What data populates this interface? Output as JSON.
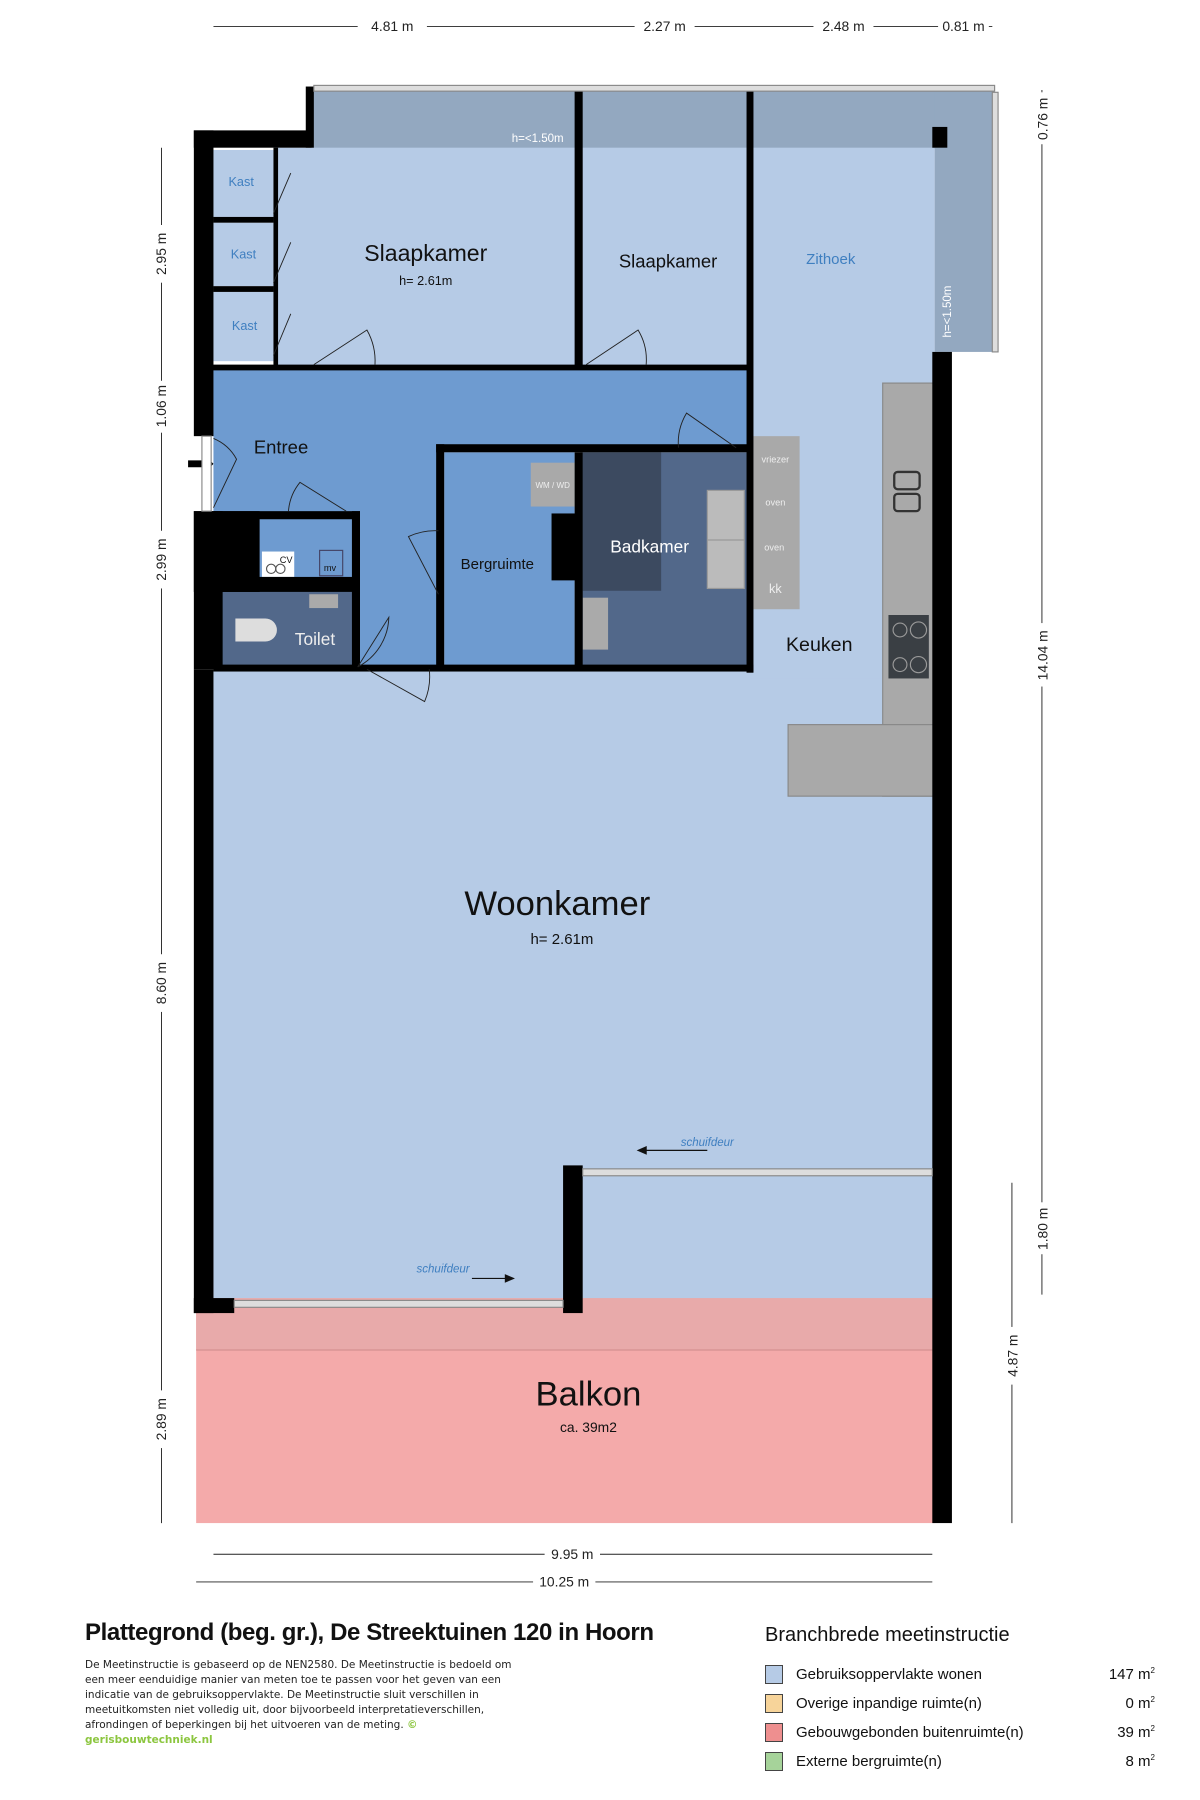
{
  "plan": {
    "rooms": {
      "slaapkamer1": "Slaapkamer",
      "slaapkamer1_height": "h= 2.61m",
      "slaapkamer2": "Slaapkamer",
      "zithoek": "Zithoek",
      "entree": "Entree",
      "bergruimte": "Bergruimte",
      "badkamer": "Badkamer",
      "toilet": "Toilet",
      "keuken": "Keuken",
      "woonkamer": "Woonkamer",
      "woonkamer_height": "h= 2.61m",
      "balkon": "Balkon",
      "balkon_area": "ca. 39m2",
      "kast": [
        "Kast",
        "Kast",
        "Kast"
      ]
    },
    "labels": {
      "top_strip_height": "h=<1.50m",
      "right_strip_height": "h=<1.50m",
      "wm_wd": "WM / WD",
      "cv": "CV",
      "mv": "mv",
      "vriezer": "vriezer",
      "oven1": "oven",
      "oven2": "oven",
      "kk": "kk",
      "schuifdeur1": "schuifdeur",
      "schuifdeur2": "schuifdeur"
    },
    "dimensions": {
      "top": [
        "4.81 m",
        "2.27 m",
        "2.48 m",
        "0.81 m"
      ],
      "left": [
        "2.95 m",
        "1.06 m",
        "2.99 m",
        "8.60 m",
        "2.89 m"
      ],
      "right": [
        "0.76 m",
        "14.04 m",
        "1.80 m"
      ],
      "right_inner": "4.87 m",
      "bottom_inner": "9.95 m",
      "bottom_outer": "10.25 m"
    },
    "colors": {
      "living": "#b6cbe6",
      "circulation": "#6e9bd0",
      "wet": "#52688a",
      "balcony": "#f4aaaa",
      "strip": "#93a8c0",
      "wall": "#000000",
      "fixture": "#a9a9a9"
    }
  },
  "footer": {
    "title": "Plattegrond (beg. gr.), De Streektuinen 120 in Hoorn",
    "note": "De Meetinstructie is gebaseerd op de NEN2580. De Meetinstructie is bedoeld om een meer eenduidige manier van meten toe te passen voor het geven van een indicatie van de gebruiksoppervlakte. De Meetinstructie sluit verschillen in meetuitkomsten niet volledig uit, door bijvoorbeeld interpretatieverschillen, afrondingen of beperkingen bij het uitvoeren van de meting.",
    "credit": "© gerisbouwtechniek.nl"
  },
  "legend": {
    "title": "Branchbrede meetinstructie",
    "items": [
      {
        "label": "Gebruiksoppervlakte wonen",
        "value": "147",
        "unit": "m",
        "color": "#b6cbe6"
      },
      {
        "label": "Overige inpandige ruimte(n)",
        "value": "0",
        "unit": "m",
        "color": "#f7d49a"
      },
      {
        "label": "Gebouwgebonden buitenruimte(n)",
        "value": "39",
        "unit": "m",
        "color": "#ee8f8f"
      },
      {
        "label": "Externe bergruimte(n)",
        "value": "8",
        "unit": "m",
        "color": "#a6d39a"
      }
    ]
  }
}
